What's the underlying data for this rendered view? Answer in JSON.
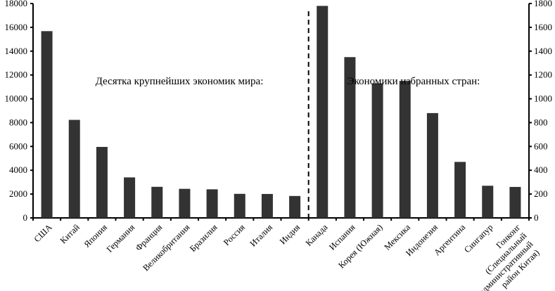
{
  "chart_data": {
    "type": "bar",
    "title": "",
    "left_axis": {
      "ylim": [
        0,
        18000
      ],
      "ticks": [
        "0",
        "2000",
        "4000",
        "6000",
        "8000",
        "10000",
        "12000",
        "14000",
        "16000",
        "18000"
      ]
    },
    "right_axis": {
      "ylim": [
        0,
        1800
      ],
      "ticks": [
        "0",
        "200",
        "400",
        "600",
        "800",
        "1000",
        "1200",
        "1400",
        "1600",
        "1800"
      ]
    },
    "annotations": {
      "left_group": "Десятка крупнейших экономик мира:",
      "right_group": "Экономики избранных стран:"
    },
    "groups": [
      {
        "axis": "left",
        "categories": [
          "США",
          "Китай",
          "Япония",
          "Германия",
          "Франция",
          "Великобритания",
          "Бразилия",
          "Россия",
          "Италия",
          "Индия"
        ],
        "values": [
          15680,
          8230,
          5960,
          3400,
          2610,
          2440,
          2400,
          2020,
          2010,
          1840
        ]
      },
      {
        "axis": "right",
        "categories": [
          "Канада",
          "Испания",
          "Корея (Южная)",
          "Мексика",
          "Индонезия",
          "Аргентина",
          "Сингапур",
          "Гонконг (Специальный административный район Китая)"
        ],
        "category_lines": [
          [
            "Канада"
          ],
          [
            "Испания"
          ],
          [
            "Корея (Южная)"
          ],
          [
            "Мексика"
          ],
          [
            "Индонезия"
          ],
          [
            "Аргентина"
          ],
          [
            "Сингапур"
          ],
          [
            "Гонконг",
            "(Специальный",
            "административный",
            "район Китая)"
          ]
        ],
        "values": [
          1780,
          1350,
          1130,
          1150,
          880,
          470,
          270,
          260
        ]
      }
    ],
    "bar_color": "#333333",
    "divider": "dashed vertical line between groups",
    "grid": false
  }
}
